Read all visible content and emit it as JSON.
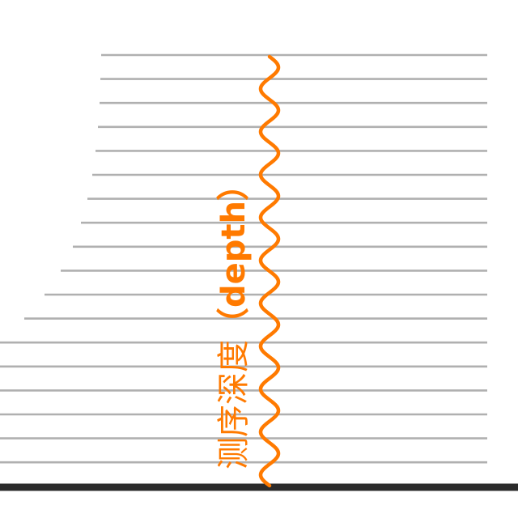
{
  "diagram": {
    "label_cn": "测序深度",
    "label_en": "（depth）",
    "colors": {
      "accent": "#ff7a00",
      "reads": "#b0b0b0",
      "baseline": "#2b2b2b",
      "background": "#ffffff"
    }
  }
}
